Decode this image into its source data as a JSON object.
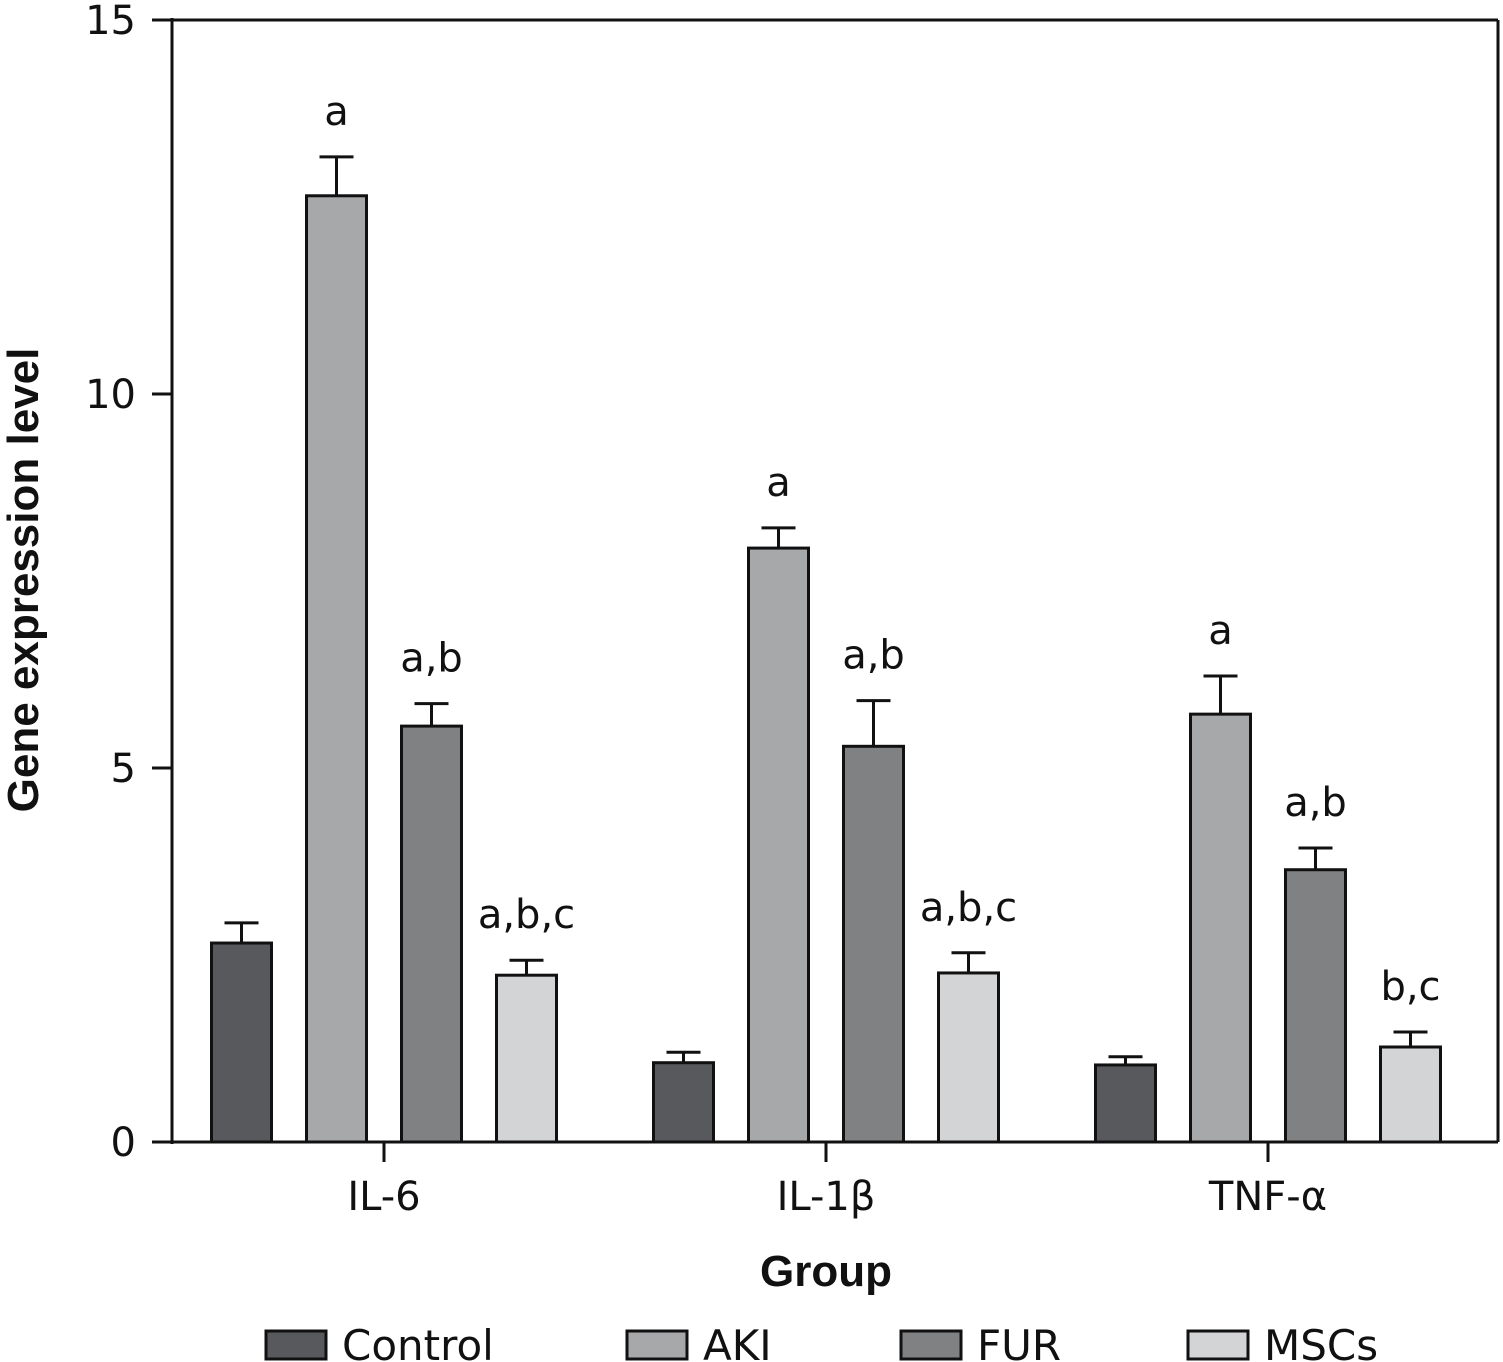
{
  "chart_data": {
    "type": "bar",
    "title": "",
    "xlabel": "Group",
    "ylabel": "Gene expression level",
    "ylim": [
      0,
      15
    ],
    "yticks": [
      0,
      5,
      10,
      15
    ],
    "ytick_labels": [
      "0",
      "5",
      "10",
      "15"
    ],
    "grid": false,
    "legend_position": "bottom",
    "categories": [
      "IL-6",
      "IL-1β",
      "TNF-α"
    ],
    "series": [
      {
        "name": "Control",
        "color": "#58595c",
        "values": [
          2.66,
          1.06,
          1.03
        ],
        "errors": [
          0.27,
          0.14,
          0.11
        ],
        "annotations": [
          "",
          "",
          ""
        ]
      },
      {
        "name": "AKI",
        "color": "#a7a8aa",
        "values": [
          12.65,
          7.94,
          5.72
        ],
        "errors": [
          0.52,
          0.27,
          0.51
        ],
        "annotations": [
          "a",
          "a",
          "a"
        ]
      },
      {
        "name": "FUR",
        "color": "#808183",
        "values": [
          5.56,
          5.29,
          3.64
        ],
        "errors": [
          0.3,
          0.61,
          0.29
        ],
        "annotations": [
          "a,b",
          "a,b",
          "a,b"
        ]
      },
      {
        "name": "MSCs",
        "color": "#d3d4d6",
        "values": [
          2.23,
          2.26,
          1.27
        ],
        "errors": [
          0.2,
          0.27,
          0.2
        ],
        "annotations": [
          "a,b,c",
          "a,b,c",
          "b,c"
        ]
      }
    ]
  }
}
